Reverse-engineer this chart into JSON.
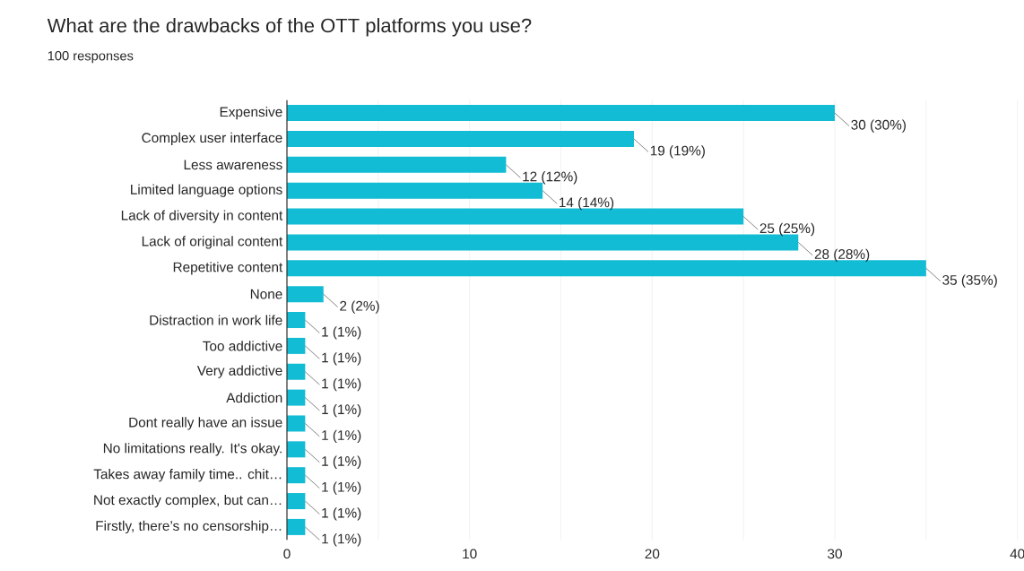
{
  "chart_data": {
    "type": "bar",
    "orientation": "horizontal",
    "title": "What are the drawbacks of the OTT platforms you use?",
    "subtitle": "100 responses",
    "categories": [
      "Expensive",
      "Complex user interface",
      "Less awareness",
      "Limited language options",
      "Lack of diversity in content",
      "Lack of original content",
      "Repetitive content",
      "None",
      "Distraction in work life",
      "Too addictive",
      "Very addictive",
      "Addiction",
      "Dont really have an issue",
      "No limitations really. It's okay.",
      "Takes away family time.. chit…",
      "Not exactly complex, but can…",
      "Firstly, there’s no censorship…"
    ],
    "values": [
      30,
      19,
      12,
      14,
      25,
      28,
      35,
      2,
      1,
      1,
      1,
      1,
      1,
      1,
      1,
      1,
      1
    ],
    "value_labels": [
      "30 (30%)",
      "19 (19%)",
      "12 (12%)",
      "14 (14%)",
      "25 (25%)",
      "28 (28%)",
      "35 (35%)",
      "2 (2%)",
      "1 (1%)",
      "1 (1%)",
      "1 (1%)",
      "1 (1%)",
      "1 (1%)",
      "1 (1%)",
      "1 (1%)",
      "1 (1%)",
      "1 (1%)"
    ],
    "color": "#12bcd4",
    "xlim": [
      0,
      40
    ],
    "xticks": [
      0,
      {
        "value": 5,
        "label": null
      },
      10,
      {
        "value": 15,
        "label": null
      },
      20,
      {
        "value": 25,
        "label": null
      },
      30,
      {
        "value": 35,
        "label": null
      },
      40
    ],
    "grid": "x"
  }
}
